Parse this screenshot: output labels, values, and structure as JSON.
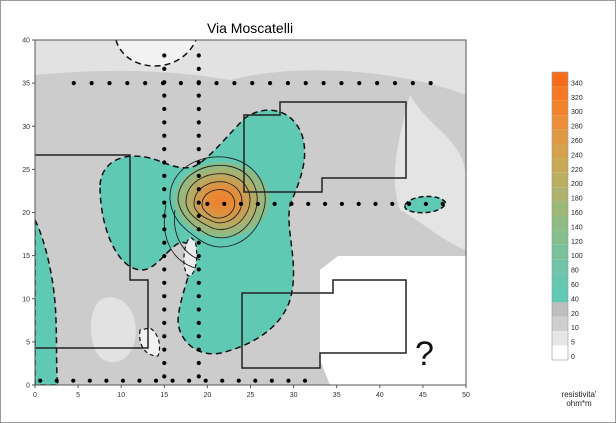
{
  "chart_data": {
    "type": "heatmap",
    "title": "Via Moscatelli",
    "xlabel": "",
    "ylabel": "",
    "xlim": [
      0,
      50
    ],
    "ylim": [
      0,
      40
    ],
    "xticks": [
      0,
      5,
      10,
      15,
      20,
      25,
      30,
      35,
      40,
      45,
      50
    ],
    "yticks": [
      0,
      5,
      10,
      15,
      20,
      25,
      30,
      35,
      40
    ],
    "annotation": "?",
    "colorbar": {
      "title_line1": "resistivita'",
      "title_line2": "ohm*m",
      "levels": [
        0,
        5,
        10,
        20,
        40,
        60,
        80,
        100,
        120,
        140,
        160,
        180,
        200,
        220,
        240,
        260,
        280,
        300,
        320,
        340
      ],
      "colors": [
        "#ffffff",
        "#e6e6e6",
        "#cfcfcf",
        "#bdbdbd",
        "#5fc9b4",
        "#66c7ad",
        "#6ec4a4",
        "#78c19a",
        "#84be8f",
        "#90bb84",
        "#9eb878",
        "#acb46d",
        "#bbaf62",
        "#c9a957",
        "#d6a14c",
        "#e19842",
        "#eb8e37",
        "#f2832d",
        "#f67824",
        "#f76c1b"
      ]
    },
    "colors": {
      "background_light": "#e8e8e8",
      "background_mid": "#c8c8c8",
      "teal": "#5fc9b4",
      "peak": "#f07f2a",
      "building_outline": "#222222"
    }
  }
}
